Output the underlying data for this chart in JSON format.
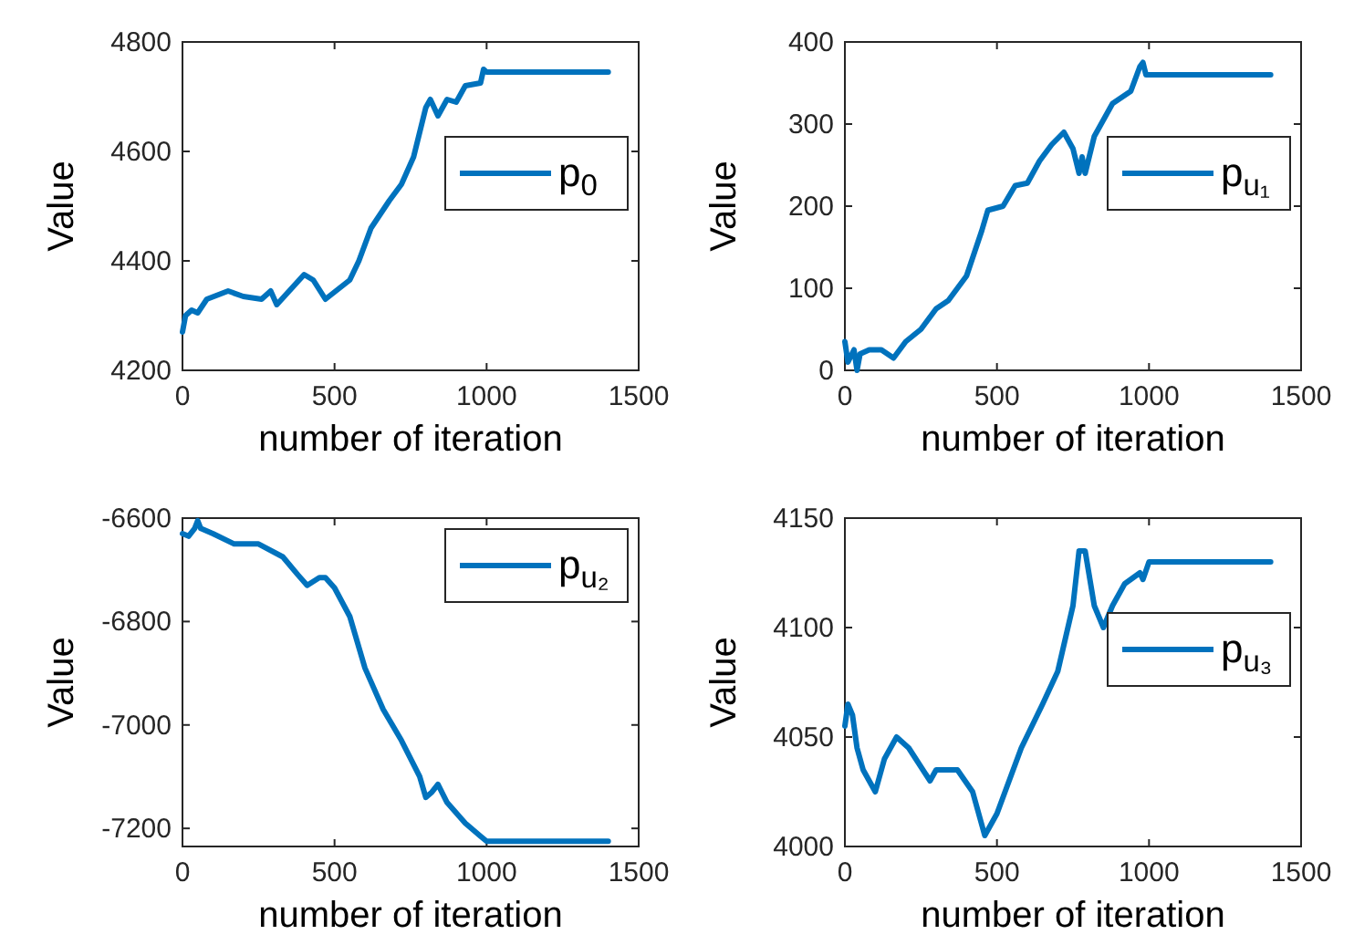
{
  "chart_data": [
    {
      "type": "line",
      "xlabel": "number of iteration",
      "ylabel": "Value",
      "xlim": [
        0,
        1500
      ],
      "xticks": [
        0,
        500,
        1000,
        1500
      ],
      "ylim": [
        4200,
        4800
      ],
      "yticks": [
        4200,
        4400,
        4600,
        4800
      ],
      "legend": "right",
      "grid": false,
      "series": [
        {
          "name": "p$_{0}$",
          "color": "#0072bd",
          "x": [
            0,
            10,
            30,
            50,
            80,
            150,
            200,
            260,
            290,
            310,
            400,
            430,
            470,
            550,
            580,
            620,
            680,
            720,
            760,
            800,
            815,
            840,
            870,
            900,
            930,
            980,
            990,
            1000,
            1400
          ],
          "values": [
            4270,
            4300,
            4310,
            4305,
            4330,
            4345,
            4335,
            4330,
            4345,
            4320,
            4375,
            4365,
            4330,
            4365,
            4400,
            4460,
            4510,
            4540,
            4590,
            4680,
            4695,
            4665,
            4695,
            4690,
            4720,
            4725,
            4750,
            4745,
            4745
          ]
        }
      ]
    },
    {
      "type": "line",
      "xlabel": "number of iteration",
      "ylabel": "Value",
      "xlim": [
        0,
        1500
      ],
      "xticks": [
        0,
        500,
        1000,
        1500
      ],
      "ylim": [
        0,
        400
      ],
      "yticks": [
        0,
        100,
        200,
        300,
        400
      ],
      "legend": "right",
      "grid": false,
      "series": [
        {
          "name": "p$_{u₁}$",
          "color": "#0072bd",
          "x": [
            0,
            10,
            30,
            40,
            50,
            80,
            120,
            160,
            200,
            250,
            300,
            340,
            400,
            450,
            470,
            520,
            560,
            600,
            640,
            680,
            720,
            750,
            770,
            780,
            790,
            820,
            880,
            940,
            970,
            980,
            990,
            1000,
            1400
          ],
          "values": [
            35,
            10,
            25,
            0,
            20,
            25,
            25,
            15,
            35,
            50,
            75,
            85,
            115,
            170,
            195,
            200,
            225,
            228,
            255,
            275,
            290,
            270,
            240,
            260,
            240,
            285,
            325,
            340,
            370,
            375,
            360,
            360,
            360
          ]
        }
      ]
    },
    {
      "type": "line",
      "xlabel": "number of iteration",
      "ylabel": "Value",
      "xlim": [
        0,
        1500
      ],
      "xticks": [
        0,
        500,
        1000,
        1500
      ],
      "ylim": [
        -7235,
        -6600
      ],
      "yticks": [
        -7200,
        -7000,
        -6800,
        -6600
      ],
      "legend": "top right",
      "grid": false,
      "series": [
        {
          "name": "p$_{u₂}$",
          "color": "#0072bd",
          "x": [
            0,
            20,
            40,
            50,
            60,
            100,
            170,
            250,
            330,
            380,
            410,
            450,
            470,
            500,
            550,
            600,
            660,
            720,
            780,
            800,
            820,
            840,
            870,
            930,
            980,
            1000,
            1400
          ],
          "values": [
            -6630,
            -6635,
            -6620,
            -6605,
            -6620,
            -6630,
            -6650,
            -6650,
            -6675,
            -6710,
            -6730,
            -6715,
            -6715,
            -6735,
            -6790,
            -6890,
            -6970,
            -7030,
            -7100,
            -7140,
            -7130,
            -7115,
            -7150,
            -7190,
            -7215,
            -7225,
            -7225
          ]
        }
      ]
    },
    {
      "type": "line",
      "xlabel": "number of iteration",
      "ylabel": "Value",
      "xlim": [
        0,
        1500
      ],
      "xticks": [
        0,
        500,
        1000,
        1500
      ],
      "ylim": [
        4000,
        4150
      ],
      "yticks": [
        4000,
        4050,
        4100,
        4150
      ],
      "legend": "right",
      "grid": false,
      "series": [
        {
          "name": "p$_{u₃}$",
          "color": "#0072bd",
          "x": [
            0,
            10,
            25,
            40,
            60,
            80,
            100,
            130,
            170,
            210,
            280,
            300,
            370,
            420,
            460,
            500,
            580,
            650,
            700,
            750,
            770,
            790,
            820,
            850,
            880,
            920,
            970,
            980,
            1000,
            1400
          ],
          "values": [
            4055,
            4065,
            4060,
            4045,
            4035,
            4030,
            4025,
            4040,
            4050,
            4045,
            4030,
            4035,
            4035,
            4025,
            4005,
            4015,
            4045,
            4065,
            4080,
            4110,
            4135,
            4135,
            4110,
            4100,
            4110,
            4120,
            4125,
            4122,
            4130,
            4130
          ]
        }
      ]
    }
  ]
}
